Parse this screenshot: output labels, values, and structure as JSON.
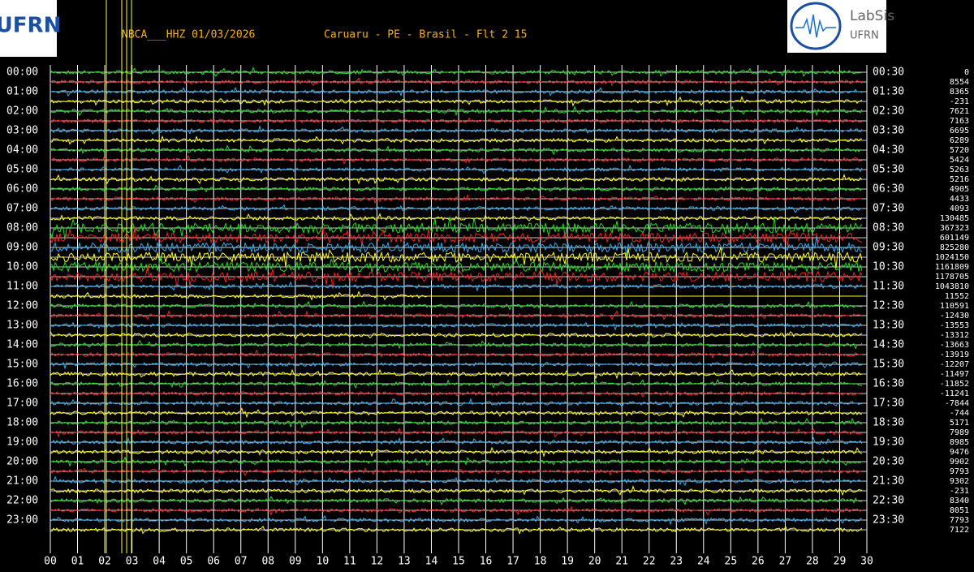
{
  "header": {
    "station": "NBCA___HHZ 01/03/2026",
    "location": "Caruaru - PE - Brasil - Flt 2 15"
  },
  "logos": {
    "left": "UFRN",
    "right_title": "LabSis",
    "right_subtitle": "UFRN"
  },
  "left_times": [
    "00:00",
    "01:00",
    "02:00",
    "03:00",
    "04:00",
    "05:00",
    "06:00",
    "07:00",
    "08:00",
    "09:00",
    "10:00",
    "11:00",
    "12:00",
    "13:00",
    "14:00",
    "15:00",
    "16:00",
    "17:00",
    "18:00",
    "19:00",
    "20:00",
    "21:00",
    "22:00",
    "23:00"
  ],
  "right_times": [
    "00:30",
    "01:30",
    "02:30",
    "03:30",
    "04:30",
    "05:30",
    "06:30",
    "07:30",
    "08:30",
    "09:30",
    "10:30",
    "11:30",
    "12:30",
    "13:30",
    "14:30",
    "15:30",
    "16:30",
    "17:30",
    "18:30",
    "19:30",
    "20:30",
    "21:30",
    "22:30",
    "23:30"
  ],
  "offsets": [
    "0",
    "8554",
    "8365",
    "-231",
    "7621",
    "7163",
    "6695",
    "6289",
    "5720",
    "5424",
    "5263",
    "5216",
    "4905",
    "4433",
    "4093",
    "130485",
    "367323",
    "601149",
    "825280",
    "1024150",
    "1161809",
    "1178705",
    "1043810",
    "11552",
    "110591",
    "-12430",
    "-13553",
    "-13312",
    "-13663",
    "-13919",
    "-12207",
    "-11497",
    "-11852",
    "-11241",
    "-7844",
    "-744",
    "5171",
    "7989",
    "8985",
    "9476",
    "9902",
    "9793",
    "9302",
    "-231",
    "8340",
    "8051",
    "7793",
    "7122"
  ],
  "x_ticks": [
    "00",
    "01",
    "02",
    "03",
    "04",
    "05",
    "06",
    "07",
    "08",
    "09",
    "10",
    "11",
    "12",
    "13",
    "14",
    "15",
    "16",
    "17",
    "18",
    "19",
    "20",
    "21",
    "22",
    "23",
    "24",
    "25",
    "26",
    "27",
    "28",
    "29",
    "30"
  ]
}
